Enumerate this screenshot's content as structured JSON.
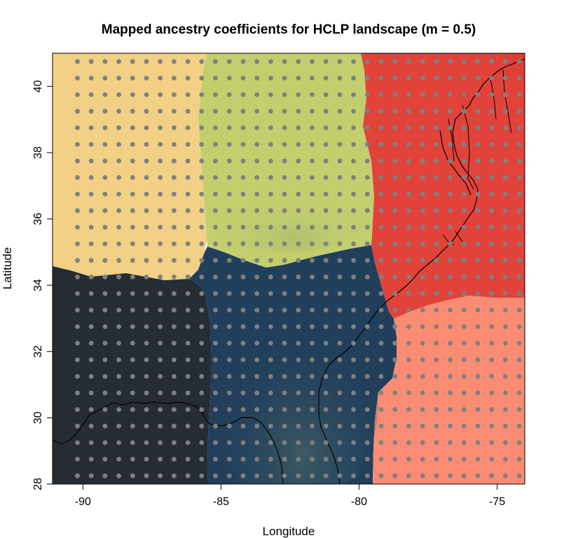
{
  "chart_data": {
    "type": "heatmap",
    "title": "Mapped ancestry coefficients for HCLP landscape (m = 0.5)",
    "xlabel": "Longitude",
    "ylabel": "Latitude",
    "xlim": [
      -91.1,
      -74.0
    ],
    "ylim": [
      28.0,
      41.0
    ],
    "x_ticks": [
      -90,
      -85,
      -80,
      -75
    ],
    "y_ticks": [
      28,
      30,
      32,
      34,
      36,
      38,
      40
    ],
    "x_tick_labels": [
      "-90",
      "-85",
      "-80",
      "-75"
    ],
    "y_tick_labels": [
      "28",
      "30",
      "32",
      "34",
      "36",
      "38",
      "40"
    ],
    "grid_points": {
      "color": "#808080",
      "lon_start": -90.2,
      "lon_step": 0.5,
      "lon_count": 33,
      "lat_start": 28.25,
      "lat_step": 0.5,
      "lat_count": 26
    },
    "regions": [
      {
        "cluster": 1,
        "color": "#f2d186",
        "lon": [
          -91.1,
          -85.5
        ],
        "lat": [
          34.3,
          41.0
        ]
      },
      {
        "cluster": 2,
        "color": "#c3cf6d",
        "lon": [
          -85.5,
          -80.0
        ],
        "lat": [
          34.5,
          41.0
        ]
      },
      {
        "cluster": 3,
        "color": "#e1433b",
        "lon": [
          -80.0,
          -74.0
        ],
        "lat": [
          33.0,
          41.0
        ]
      },
      {
        "cluster": 4,
        "color": "#252c34",
        "lon": [
          -91.1,
          -85.5
        ],
        "lat": [
          28.0,
          34.3
        ]
      },
      {
        "cluster": 5,
        "color": "#213f5b",
        "lon": [
          -85.5,
          -79.5
        ],
        "lat": [
          28.0,
          34.5
        ]
      },
      {
        "cluster": 6,
        "color": "#f98c73",
        "lon": [
          -79.5,
          -74.0
        ],
        "lat": [
          28.0,
          33.5
        ]
      }
    ],
    "grid": false,
    "legend": "none"
  }
}
